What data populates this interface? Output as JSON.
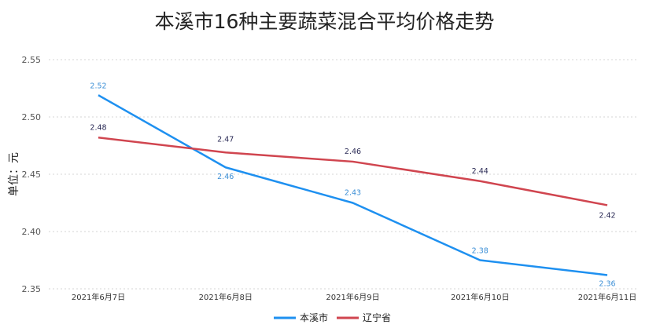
{
  "chart_data": {
    "type": "line",
    "title": "本溪市16种主要蔬菜混合平均价格走势",
    "xlabel": "",
    "ylabel": "单位：元",
    "categories": [
      "2021年6月7日",
      "2021年6月8日",
      "2021年6月9日",
      "2021年6月10日",
      "2021年6月11日"
    ],
    "ylim": [
      2.35,
      2.55
    ],
    "yticks": [
      "2.55",
      "2.50",
      "2.45",
      "2.40",
      "2.35"
    ],
    "grid": "horizontal dashed",
    "legend_position": "bottom",
    "series": [
      {
        "name": "本溪市",
        "color": "#1e90f0",
        "values": [
          2.519,
          2.456,
          2.425,
          2.375,
          2.362
        ],
        "labels": [
          "2.52",
          "2.46",
          "2.43",
          "2.38",
          "2.36"
        ]
      },
      {
        "name": "辽宁省",
        "color": "#d0454f",
        "values": [
          2.482,
          2.469,
          2.461,
          2.444,
          2.423
        ],
        "labels": [
          "2.48",
          "2.47",
          "2.46",
          "2.44",
          "2.42"
        ]
      }
    ]
  }
}
